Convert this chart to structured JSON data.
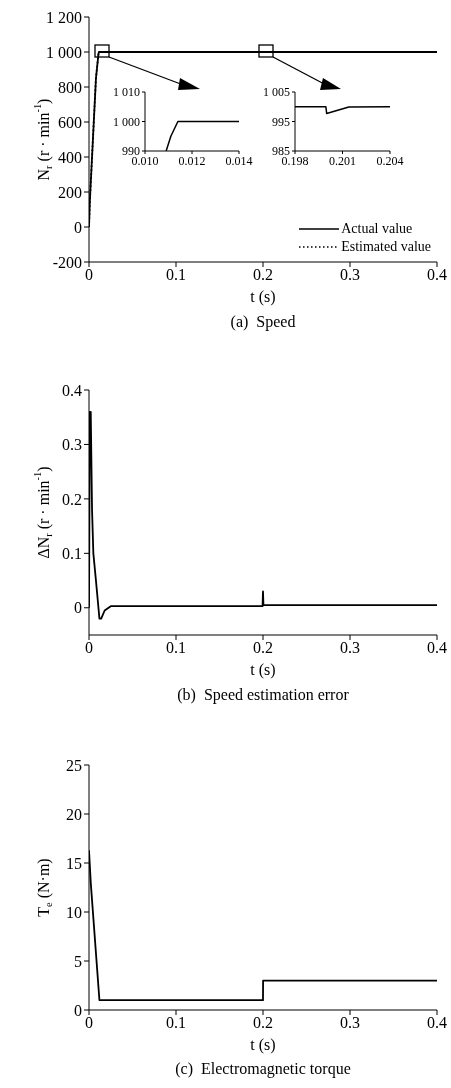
{
  "chart_data": [
    {
      "type": "line",
      "title": "(a)  Speed",
      "xlabel": "t (s)",
      "ylabel": "N$_{r}$ (r · min$^{-1}$)",
      "xlim": [
        0,
        0.4
      ],
      "xticks": [
        0,
        0.1,
        0.2,
        0.3,
        0.4
      ],
      "ylim": [
        -200,
        1200
      ],
      "yticks": [
        -200,
        0,
        200,
        400,
        600,
        800,
        {
          "value": 1000,
          "label": "1 000"
        },
        {
          "value": 1200,
          "label": "1 200"
        }
      ],
      "grid": false,
      "legend": "bottom right",
      "series": [
        {
          "name": "Actual value",
          "color": "#000000",
          "line_style": "solid",
          "x": [
            0,
            0.001,
            0.004,
            0.008,
            0.0109,
            0.0114,
            0.4
          ],
          "values": [
            0,
            150,
            450,
            850,
            990,
            1000,
            1000
          ]
        },
        {
          "name": "Estimated value",
          "color": "#000000",
          "line_style": "dotted",
          "x": [
            0,
            0.001,
            0.004,
            0.008,
            0.0109,
            0.0114,
            0.4
          ],
          "values": [
            0,
            150,
            450,
            850,
            990,
            1000,
            1000
          ]
        }
      ]
    },
    {
      "type": "line",
      "xlim": [
        0.01,
        0.014
      ],
      "xticks": [
        {
          "value": 0.01,
          "label": "0.010"
        },
        0.012,
        0.014
      ],
      "ylim": [
        990,
        1010
      ],
      "yticks": [
        990,
        {
          "value": 1000,
          "label": "1 000"
        },
        {
          "value": 1010,
          "label": "1 010"
        }
      ],
      "grid": false,
      "series": [
        {
          "color": "#000000",
          "x": [
            0.0109,
            0.0111,
            0.0114,
            0.014
          ],
          "values": [
            990,
            995,
            1000,
            1000
          ]
        }
      ]
    },
    {
      "type": "line",
      "xlim": [
        0.198,
        0.204
      ],
      "xticks": [
        0.198,
        0.201,
        0.204
      ],
      "ylim": [
        985,
        1005
      ],
      "yticks": [
        985,
        995,
        {
          "value": 1005,
          "label": "1 005"
        }
      ],
      "grid": false,
      "series": [
        {
          "color": "#000000",
          "x": [
            0.198,
            0.19995,
            0.2,
            0.2007,
            0.2014,
            0.204
          ],
          "values": [
            1000,
            1000,
            997.7,
            998.8,
            999.9,
            1000
          ]
        }
      ]
    },
    {
      "type": "line",
      "title": "(b)  Speed estimation error",
      "xlabel": "t (s)",
      "ylabel": "ΔN$_{r}$ (r · min$^{-1}$)",
      "xlim": [
        0,
        0.4
      ],
      "xticks": [
        0,
        0.1,
        0.2,
        0.3,
        0.4
      ],
      "ylim": [
        -0.05,
        0.4
      ],
      "yticks": [
        0,
        0.1,
        0.2,
        0.3,
        0.4
      ],
      "grid": false,
      "series": [
        {
          "color": "#000000",
          "x": [
            0,
            0.001,
            0.002,
            0.0035,
            0.005,
            0.008,
            0.012,
            0.014,
            0.018,
            0.025,
            0.1995,
            0.2,
            0.2005,
            0.4
          ],
          "values": [
            0,
            0.36,
            0.36,
            0.18,
            0.1,
            0.05,
            -0.02,
            -0.02,
            -0.005,
            0.003,
            0.003,
            0.03,
            0.005,
            0.005
          ]
        }
      ]
    },
    {
      "type": "line",
      "title": "(c)  Electromagnetic torque",
      "xlabel": "t (s)",
      "ylabel": "T$_{e}$ (N·m)",
      "xlim": [
        0,
        0.4
      ],
      "xticks": [
        0,
        0.1,
        0.2,
        0.3,
        0.4
      ],
      "ylim": [
        0,
        25
      ],
      "yticks": [
        0,
        5,
        10,
        15,
        20,
        25
      ],
      "grid": false,
      "series": [
        {
          "color": "#000000",
          "x": [
            0,
            0.002,
            0.012,
            0.2,
            0.2001,
            0.4
          ],
          "values": [
            16.3,
            13,
            1,
            1,
            3,
            3
          ]
        }
      ]
    }
  ]
}
